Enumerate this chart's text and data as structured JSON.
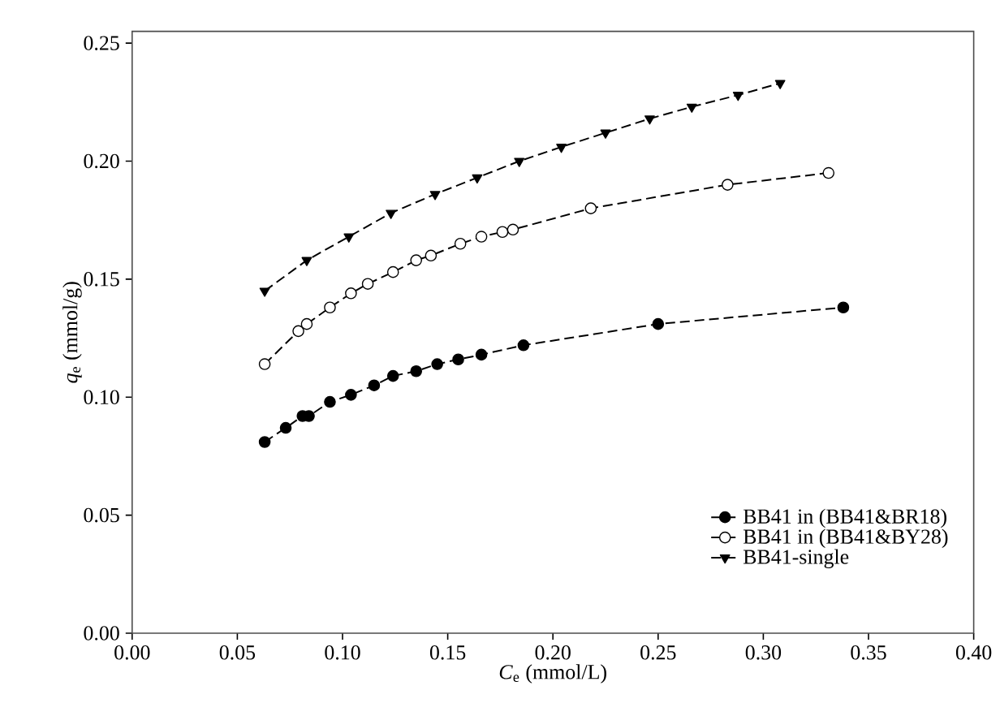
{
  "chart_data": {
    "type": "line",
    "xlabel": "*C*$_{e}$ (mmol/L)",
    "ylabel": "*q*$_{e}$ (mmol/g)",
    "xlim": [
      0,
      0.4
    ],
    "ylim": [
      0,
      0.255
    ],
    "xticks": [
      {
        "value": 0,
        "label": "0.00"
      },
      0.05,
      {
        "value": 0.1,
        "label": "0.10"
      },
      0.15,
      {
        "value": 0.2,
        "label": "0.20"
      },
      0.25,
      {
        "value": 0.3,
        "label": "0.30"
      },
      0.35,
      {
        "value": 0.4,
        "label": "0.40"
      }
    ],
    "yticks": [
      {
        "value": 0,
        "label": "0.00"
      },
      0.05,
      {
        "value": 0.1,
        "label": "0.10"
      },
      0.15,
      {
        "value": 0.2,
        "label": "0.20"
      },
      0.25
    ],
    "grid": false,
    "legend": "bottom right",
    "line_style": "dashed",
    "series": [
      {
        "name": "BB41 in (BB41&BR18)",
        "color": "#000000",
        "marker": "circle",
        "x": [
          0.063,
          0.073,
          0.081,
          0.084,
          0.094,
          0.104,
          0.115,
          0.124,
          0.135,
          0.145,
          0.155,
          0.166,
          0.186,
          0.25,
          0.338
        ],
        "values": [
          0.081,
          0.087,
          0.092,
          0.092,
          0.098,
          0.101,
          0.105,
          0.109,
          0.111,
          0.114,
          0.116,
          0.118,
          0.122,
          0.131,
          0.138
        ]
      },
      {
        "name": "BB41 in (BB41&BY28)",
        "color": "#000000",
        "marker": "open circle",
        "x": [
          0.063,
          0.079,
          0.083,
          0.094,
          0.104,
          0.112,
          0.124,
          0.135,
          0.142,
          0.156,
          0.166,
          0.176,
          0.181,
          0.218,
          0.283,
          0.331
        ],
        "values": [
          0.114,
          0.128,
          0.131,
          0.138,
          0.144,
          0.148,
          0.153,
          0.158,
          0.16,
          0.165,
          0.168,
          0.17,
          0.171,
          0.18,
          0.19,
          0.195
        ]
      },
      {
        "name": "BB41-single",
        "color": "#000000",
        "marker": "triangle",
        "x": [
          0.063,
          0.083,
          0.103,
          0.123,
          0.144,
          0.164,
          0.184,
          0.204,
          0.225,
          0.246,
          0.266,
          0.288,
          0.308
        ],
        "values": [
          0.145,
          0.158,
          0.168,
          0.178,
          0.186,
          0.193,
          0.2,
          0.206,
          0.212,
          0.218,
          0.223,
          0.228,
          0.233
        ]
      }
    ]
  }
}
